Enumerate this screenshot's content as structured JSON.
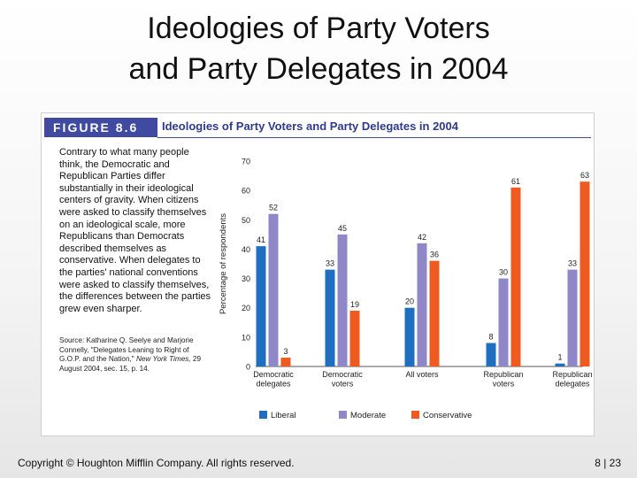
{
  "slide": {
    "title_line1": "Ideologies of Party Voters",
    "title_line2": "and Party Delegates in 2004",
    "footer_copyright": "Copyright © Houghton Mifflin Company. All rights reserved.",
    "page_number": "8 | 23"
  },
  "figure": {
    "label": "FIGURE 8.6",
    "title": "Ideologies of Party Voters and Party Delegates in 2004",
    "caption": "Contrary to what many people think, the Democratic and Republican Parties differ substantially in their ideological centers of gravity. When citizens were asked to classify themselves on an ideological scale, more Republicans than Democrats described themselves as conservative. When delegates to the parties' national conventions were asked to classify themselves, the differences between the parties grew even sharper.",
    "source_prefix": "Source: Katharine Q. Seelye and Marjorie Connelly, \"Delegates Leaning to Right of G.O.P. and the Nation,\" ",
    "source_italic": "New York Times,",
    "source_suffix": " 29 August 2004, sec. 15, p. 14."
  },
  "chart_data": {
    "type": "bar",
    "ylabel": "Percentage of respondents",
    "ylim": [
      0,
      70
    ],
    "yticks": [
      0,
      10,
      20,
      30,
      40,
      50,
      60,
      70
    ],
    "categories": [
      [
        "Democratic",
        "delegates"
      ],
      [
        "Democratic",
        "voters"
      ],
      [
        "All voters"
      ],
      [
        "Republican",
        "voters"
      ],
      [
        "Republican",
        "delegates"
      ]
    ],
    "series": [
      {
        "name": "Liberal",
        "color": "#1f6fc0",
        "values": [
          41,
          33,
          20,
          8,
          1
        ]
      },
      {
        "name": "Moderate",
        "color": "#8f87c8",
        "values": [
          52,
          45,
          42,
          30,
          33
        ]
      },
      {
        "name": "Conservative",
        "color": "#ee5a1f",
        "values": [
          3,
          19,
          36,
          61,
          63
        ]
      }
    ],
    "legend_position": "bottom",
    "grid": false
  }
}
